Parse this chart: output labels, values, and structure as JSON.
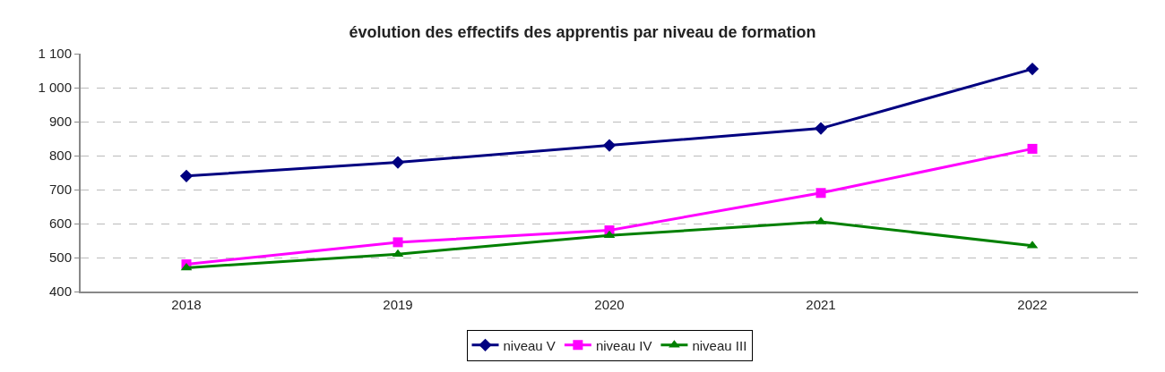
{
  "chart_data": {
    "type": "line",
    "title": "évolution des effectifs des apprentis par niveau de formation",
    "categories": [
      "2018",
      "2019",
      "2020",
      "2021",
      "2022"
    ],
    "series": [
      {
        "name": "niveau V",
        "color": "#000080",
        "values": [
          740,
          780,
          830,
          880,
          1055
        ],
        "marker": "diamond"
      },
      {
        "name": "niveau IV",
        "color": "#ff00ff",
        "values": [
          480,
          545,
          580,
          690,
          820
        ],
        "marker": "square"
      },
      {
        "name": "niveau III",
        "color": "#008000",
        "values": [
          470,
          510,
          565,
          605,
          535
        ],
        "marker": "triangle"
      }
    ],
    "ylim": [
      400,
      1100
    ],
    "yticks": [
      400,
      500,
      600,
      700,
      800,
      900,
      {
        "value": 1000,
        "label": "1 000"
      },
      {
        "value": 1100,
        "label": "1 100"
      }
    ],
    "grid": "y",
    "legend": "bottom",
    "line_style": "solid"
  }
}
